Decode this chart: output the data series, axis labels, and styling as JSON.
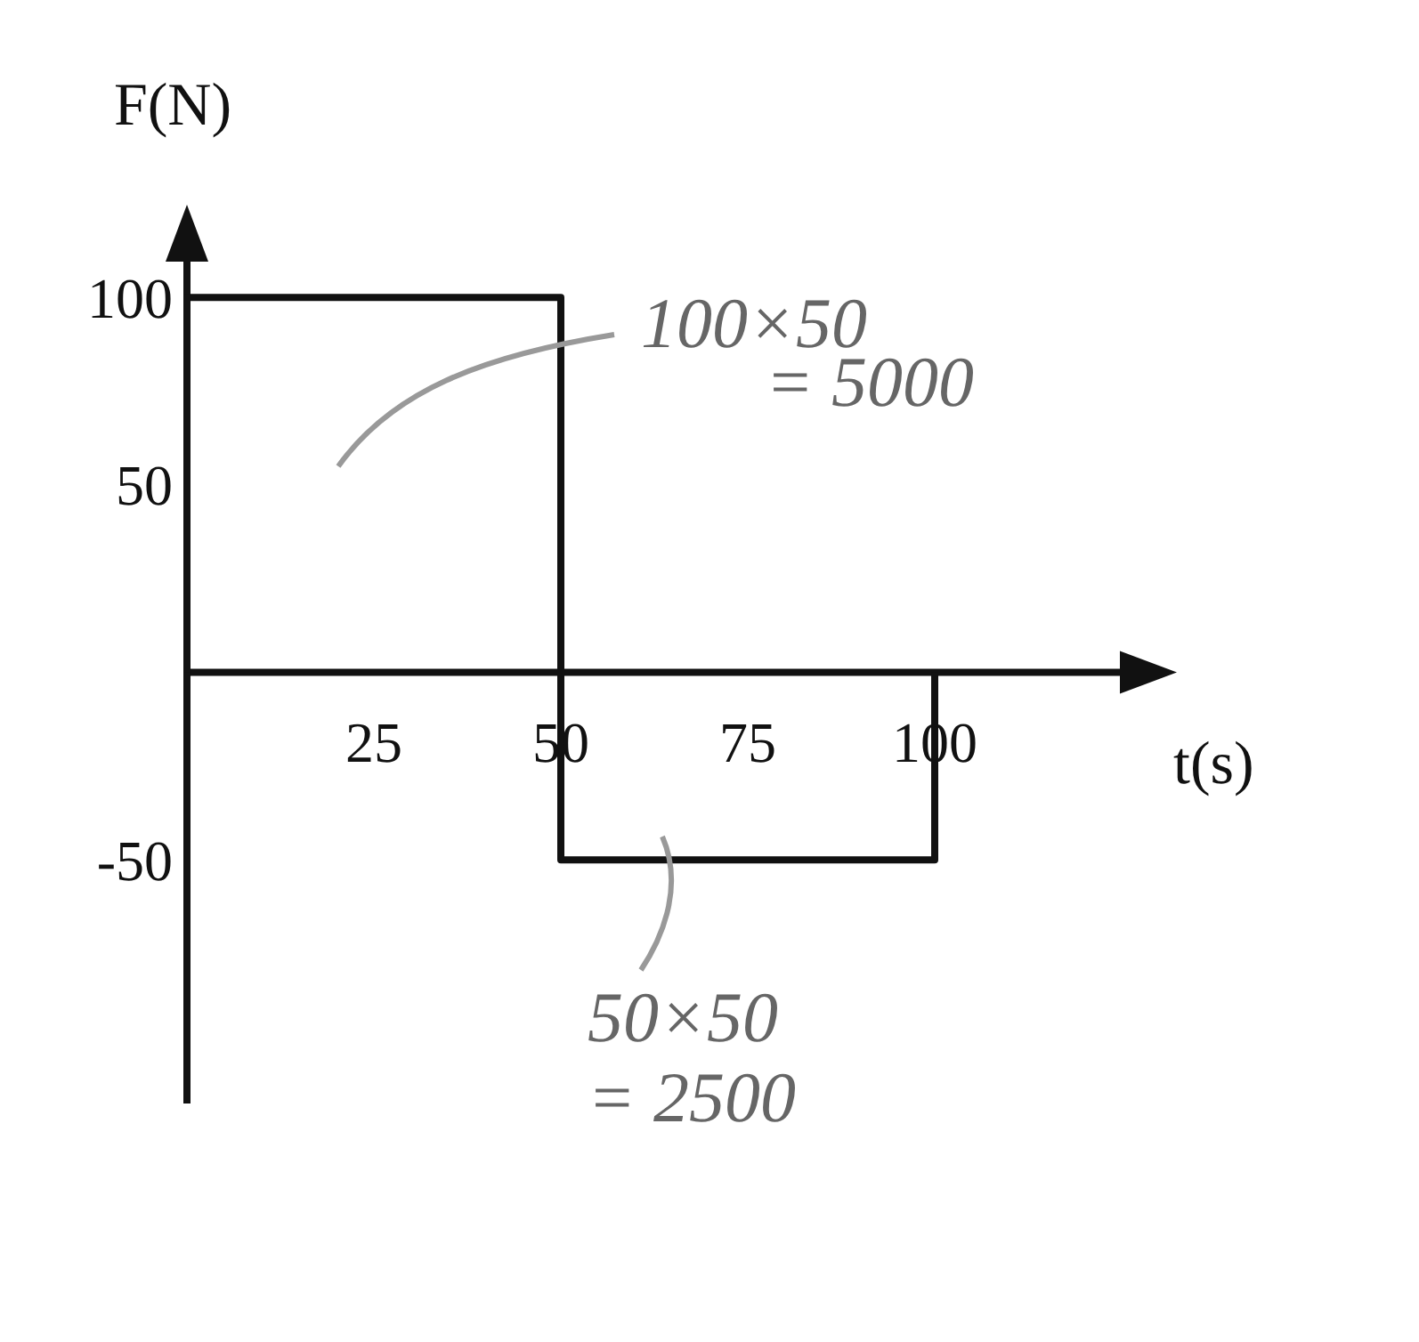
{
  "chart_data": {
    "type": "line",
    "xlabel": "t(s)",
    "ylabel": "F(N)",
    "x": [
      0,
      0,
      50,
      50,
      100,
      100
    ],
    "series": [
      {
        "color": "#111111",
        "values": [
          0,
          100,
          100,
          -50,
          -50,
          0
        ]
      }
    ],
    "xlim": [
      0,
      130
    ],
    "ylim": [
      -115,
      120
    ],
    "xticks": [
      25,
      50,
      75,
      100
    ],
    "yticks": [
      -50,
      50,
      100
    ],
    "grid": false,
    "line_style": "solid",
    "annotations": [
      "100×50",
      "= 5000",
      "50×50",
      "= 2500"
    ]
  }
}
